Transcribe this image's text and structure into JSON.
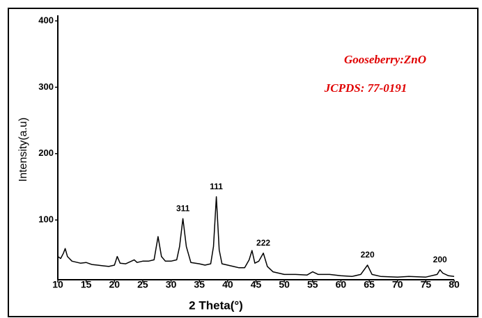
{
  "chart_data": {
    "type": "line",
    "x_label": "2 Theta(°)",
    "y_label": "Intensity(a.u)",
    "annotations": [
      "Gooseberry:ZnO",
      "JCPDS: 77-0191"
    ],
    "peak_labels": [
      {
        "text": "311",
        "x": 32.1
      },
      {
        "text": "111",
        "x": 38
      },
      {
        "text": "222",
        "x": 46.3
      },
      {
        "text": "220",
        "x": 64.7
      },
      {
        "text": "200",
        "x": 77.5
      }
    ],
    "x": [
      10,
      10.5,
      11,
      11.3,
      11.7,
      12.5,
      14,
      15,
      16,
      17,
      18,
      19,
      20,
      20.5,
      21,
      22,
      23,
      23.5,
      24,
      25,
      26,
      27,
      27.7,
      28.3,
      29,
      30,
      31,
      31.5,
      32.1,
      32.7,
      33.5,
      35,
      36,
      37,
      37.5,
      38,
      38.5,
      39,
      40,
      41,
      42,
      43,
      43.8,
      44.3,
      44.8,
      45.5,
      46.3,
      47,
      48,
      50,
      52,
      54,
      55,
      56,
      58,
      60,
      62,
      63.5,
      64.7,
      65.5,
      67,
      70,
      72,
      75,
      77,
      77.5,
      78,
      79,
      80
    ],
    "series": [
      {
        "color": "#000000",
        "values": [
          45,
          42,
          50,
          57,
          45,
          38,
          35,
          36,
          33,
          32,
          31,
          30,
          32,
          45,
          35,
          34,
          38,
          40,
          36,
          38,
          38,
          40,
          75,
          45,
          38,
          38,
          40,
          60,
          102,
          60,
          36,
          34,
          32,
          34,
          60,
          135,
          55,
          34,
          32,
          30,
          28,
          28,
          40,
          54,
          35,
          38,
          50,
          30,
          22,
          18,
          18,
          17,
          22,
          18,
          18,
          16,
          15,
          18,
          32,
          18,
          15,
          14,
          15,
          14,
          18,
          25,
          20,
          16,
          15
        ]
      }
    ],
    "xlim": [
      10,
      80
    ],
    "xticks": [
      10,
      15,
      20,
      25,
      30,
      35,
      40,
      45,
      50,
      55,
      60,
      65,
      70,
      75,
      80
    ],
    "ylim": [
      10,
      400
    ],
    "yticks": [
      100,
      200,
      300,
      400
    ]
  }
}
